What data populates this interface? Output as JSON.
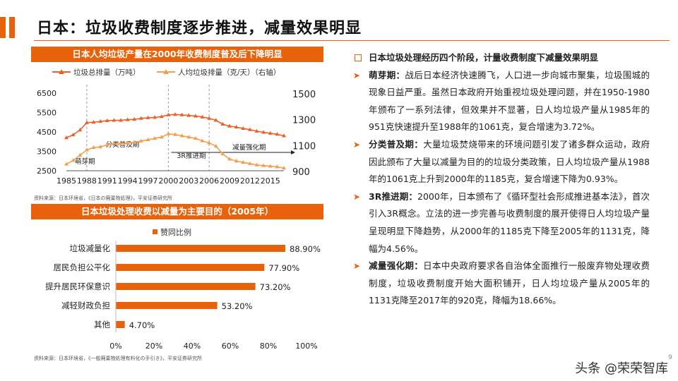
{
  "page": {
    "title": "日本：垃圾收费制度逐步推进，减量效果明显",
    "page_number": "9",
    "watermark": "头条 @荣荣智库"
  },
  "colors": {
    "accent": "#e8620c",
    "series1": "#e8622d",
    "series2": "#f0a050"
  },
  "chart_data": [
    {
      "type": "line",
      "title": "日本人均垃圾产量在2000年收费制度普及后下降明显",
      "x": [
        1985,
        1986,
        1987,
        1988,
        1989,
        1990,
        1991,
        1992,
        1993,
        1994,
        1995,
        1996,
        1997,
        1998,
        1999,
        2000,
        2001,
        2002,
        2003,
        2004,
        2005,
        2006,
        2007,
        2008,
        2009,
        2010,
        2011,
        2012,
        2013,
        2014,
        2015,
        2016,
        2017
      ],
      "x_ticks": [
        "1985",
        "1988",
        "1991",
        "1994",
        "1997",
        "2000",
        "2003",
        "2006",
        "2009",
        "2012",
        "2015"
      ],
      "series": [
        {
          "name": "垃圾总排量（万吨）",
          "axis": "left",
          "values": [
            4200,
            4350,
            4600,
            4980,
            5000,
            5040,
            5080,
            5100,
            5100,
            5130,
            5150,
            5200,
            5230,
            5250,
            5290,
            5380,
            5400,
            5380,
            5350,
            5320,
            5270,
            5200,
            5100,
            4900,
            4800,
            4750,
            4680,
            4620,
            4540,
            4480,
            4430,
            4380,
            4300
          ]
        },
        {
          "name": "人均垃圾排量（克/天）（右轴）",
          "axis": "right",
          "values": [
            951,
            980,
            1020,
            1061,
            1080,
            1085,
            1100,
            1110,
            1110,
            1115,
            1120,
            1130,
            1140,
            1150,
            1160,
            1185,
            1180,
            1170,
            1160,
            1150,
            1131,
            1115,
            1090,
            1030,
            990,
            975,
            965,
            955,
            945,
            940,
            935,
            930,
            920
          ]
        }
      ],
      "y_left": {
        "ticks": [
          "2500",
          "3500",
          "4500",
          "5500",
          "6500"
        ],
        "range": [
          2500,
          6500
        ]
      },
      "y_right": {
        "ticks": [
          "900",
          "1100",
          "1300",
          "1500"
        ],
        "range": [
          900,
          1500
        ]
      },
      "phases": [
        {
          "label": "萌芽期",
          "from": 1985,
          "to": 1988
        },
        {
          "label": "分类普及期",
          "from": 1988,
          "to": 2000
        },
        {
          "label": "3R推进期",
          "from": 2000,
          "to": 2005
        },
        {
          "label": "减量强化期",
          "from": 2005,
          "to": 2017
        }
      ],
      "source": "资料来源：日本环境省，《日本の廃棄物処理》，平安证券研究所"
    },
    {
      "type": "bar",
      "orientation": "horizontal",
      "title": "日本垃圾处理收费以减量为主要目的（2005年）",
      "legend": "赞同比例",
      "categories": [
        "垃圾减量化",
        "居民负担公平化",
        "提升居民环保意识",
        "减轻财政负担",
        "其他"
      ],
      "values": [
        88.9,
        77.9,
        73.2,
        53.2,
        4.7
      ],
      "value_labels": [
        "88.90%",
        "77.90%",
        "73.20%",
        "53.20%",
        "4.70%"
      ],
      "x_ticks": [
        "0%",
        "20%",
        "40%",
        "60%",
        "80%",
        "100%"
      ],
      "xlim": [
        0,
        100
      ],
      "source": "资料来源：日本环境省，《一般廃棄物処理有料化の手引き》，平安证券研究所"
    }
  ],
  "text": {
    "heading": "日本垃圾处理经历四个阶段，计量收费制度下减量效果明显",
    "items": [
      {
        "label": "萌芽期：",
        "body": "战后日本经济快速腾飞，人口进一步向城市聚集，垃圾围城的现象日益严重。虽然日本政府开始重视垃圾处理问题，并在1950-1980年颁布了一系列法律，但效果并不显著，日人均垃圾产量从1985年的951克快速提升至1988年的1061克，复合增速为3.72%。"
      },
      {
        "label": "分类普及期：",
        "body": "大量垃圾焚烧带来的环境问题引发了诸多群众运动，政府因此颁布了大量以减量为目的的垃圾分类政策，日人均垃圾产量从1988年的1061克上升到2000年的1185克，复合增速下降为0.93%。"
      },
      {
        "label": "3R推进期：",
        "body": "2000年，日本颁布了《循环型社会形成推进基本法》，首次引入3R概念。立法的进一步完善与收费制度的展开使得日人均垃圾产量呈现明显下降趋势，从2000年的1185克下降至2005年的1131克，降幅为4.56%。"
      },
      {
        "label": "减量强化期：",
        "body": "日本中央政府要求各自治体全面推行一般废弃物处理收费制度，垃圾收费制度开始大面积铺开，日人均垃圾产量从2005年的1131克降至2017年的920克，降幅为18.66%。"
      }
    ]
  }
}
